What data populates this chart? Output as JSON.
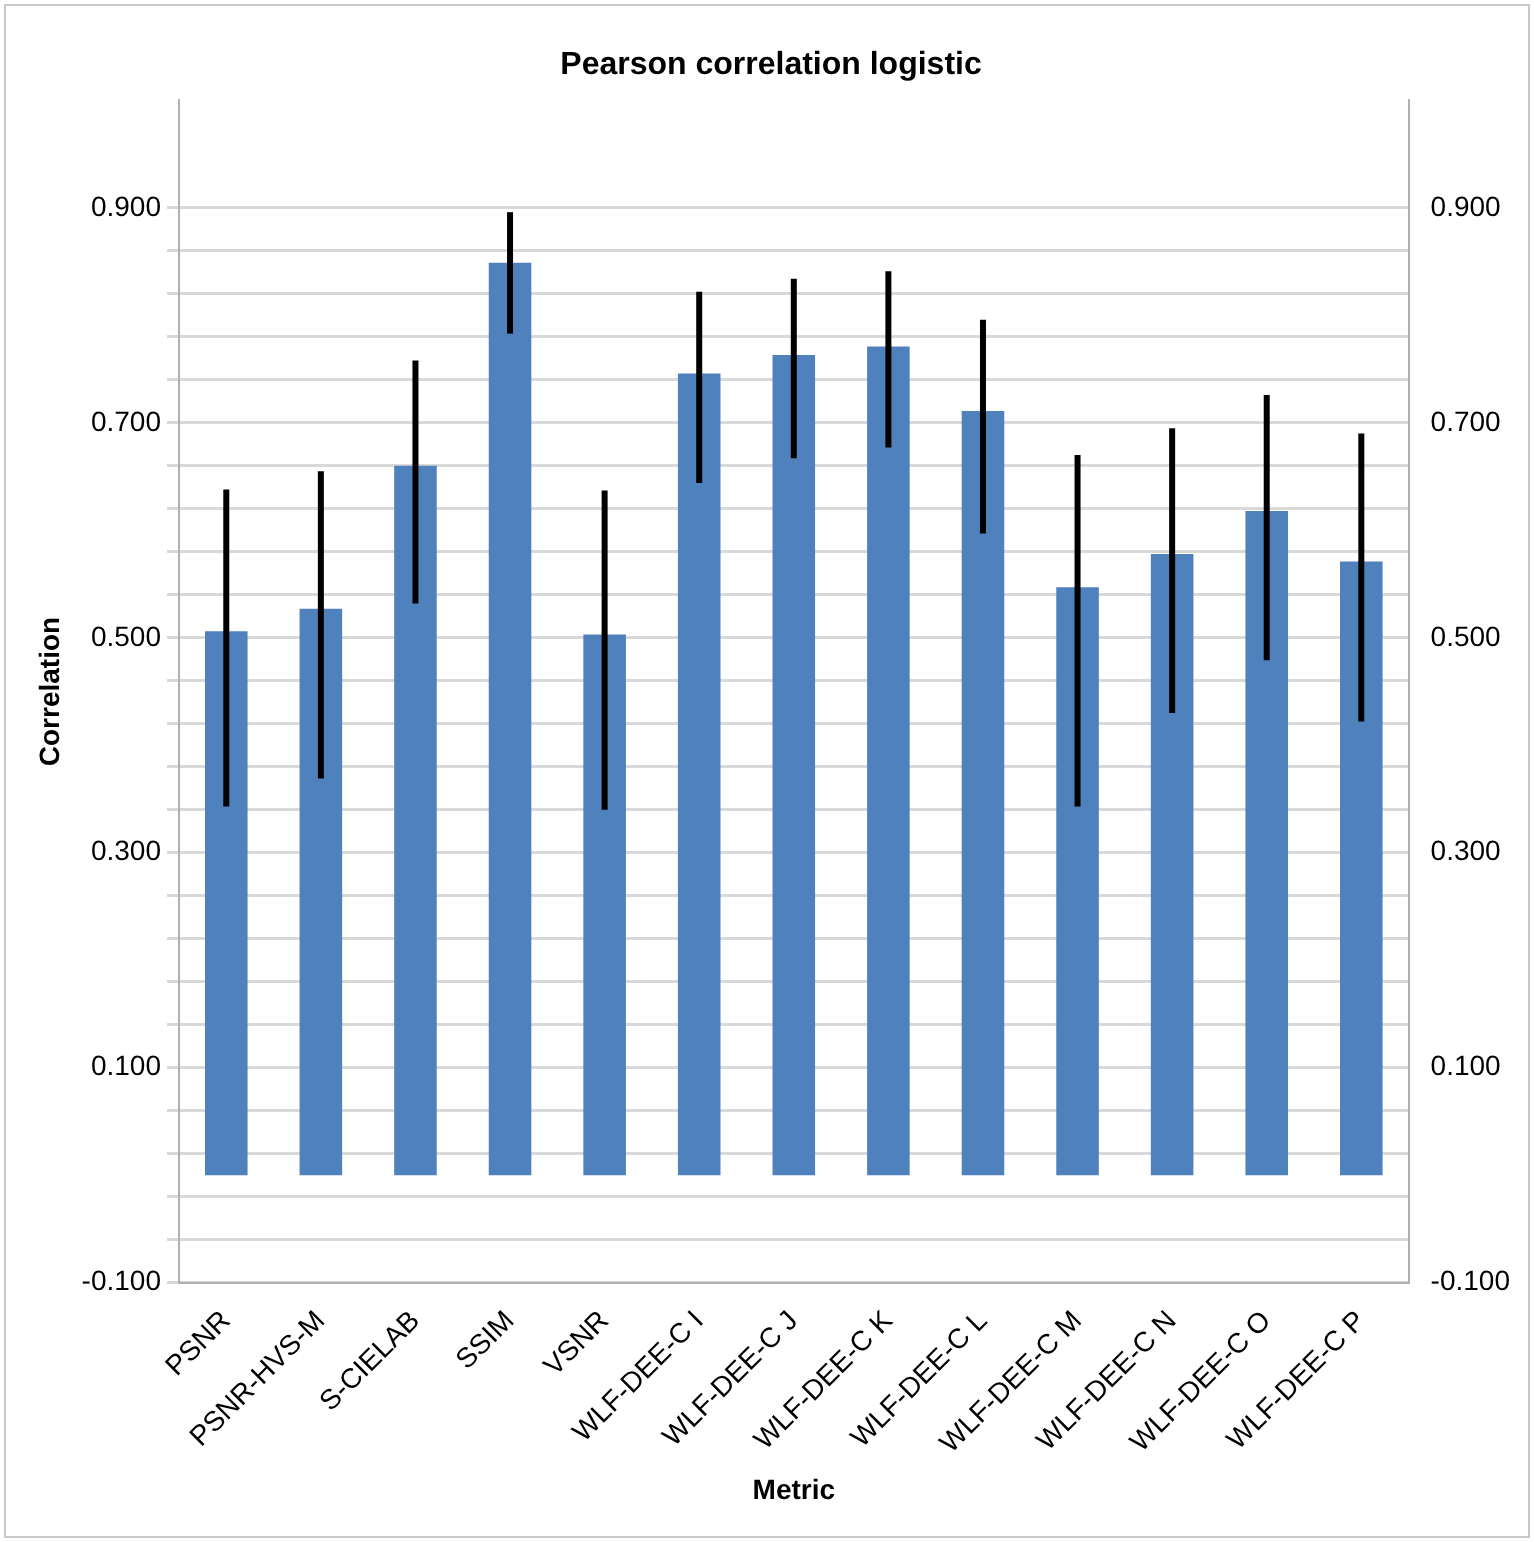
{
  "chart_data": {
    "type": "bar",
    "title": "Pearson correlation logistic",
    "xlabel": "Metric",
    "ylabel": "Correlation",
    "categories": [
      "PSNR",
      "PSNR-HVS-M",
      "S-CIELAB",
      "SSIM",
      "VSNR",
      "WLF-DEE-C I",
      "WLF-DEE-C J",
      "WLF-DEE-C K",
      "WLF-DEE-C L",
      "WLF-DEE-C M",
      "WLF-DEE-C N",
      "WLF-DEE-C O",
      "WLF-DEE-C P"
    ],
    "values": [
      0.506,
      0.527,
      0.66,
      0.849,
      0.503,
      0.746,
      0.763,
      0.771,
      0.711,
      0.547,
      0.578,
      0.618,
      0.571
    ],
    "errors": [
      [
        0.343,
        0.638
      ],
      [
        0.369,
        0.655
      ],
      [
        0.532,
        0.758
      ],
      [
        0.783,
        0.896
      ],
      [
        0.34,
        0.637
      ],
      [
        0.644,
        0.822
      ],
      [
        0.667,
        0.834
      ],
      [
        0.677,
        0.841
      ],
      [
        0.597,
        0.796
      ],
      [
        0.343,
        0.67
      ],
      [
        0.43,
        0.695
      ],
      [
        0.479,
        0.726
      ],
      [
        0.422,
        0.69
      ]
    ],
    "color": "#4f81bd",
    "ylim": [
      -0.1,
      1.0
    ],
    "yticks": [
      {
        "value": -0.1,
        "label": "-0.100"
      },
      {
        "value": -0.06,
        "label": null
      },
      {
        "value": -0.02,
        "label": null
      },
      {
        "value": 0.02,
        "label": null
      },
      {
        "value": 0.06,
        "label": null
      },
      {
        "value": 0.1,
        "label": "0.100"
      },
      {
        "value": 0.14,
        "label": null
      },
      {
        "value": 0.18,
        "label": null
      },
      {
        "value": 0.22,
        "label": null
      },
      {
        "value": 0.26,
        "label": null
      },
      {
        "value": 0.3,
        "label": "0.300"
      },
      {
        "value": 0.34,
        "label": null
      },
      {
        "value": 0.38,
        "label": null
      },
      {
        "value": 0.42,
        "label": null
      },
      {
        "value": 0.46,
        "label": null
      },
      {
        "value": 0.5,
        "label": "0.500"
      },
      {
        "value": 0.54,
        "label": null
      },
      {
        "value": 0.58,
        "label": null
      },
      {
        "value": 0.62,
        "label": null
      },
      {
        "value": 0.66,
        "label": null
      },
      {
        "value": 0.7,
        "label": "0.700"
      },
      {
        "value": 0.74,
        "label": null
      },
      {
        "value": 0.78,
        "label": null
      },
      {
        "value": 0.82,
        "label": null
      },
      {
        "value": 0.86,
        "label": null
      },
      {
        "value": 0.9,
        "label": "0.900"
      }
    ],
    "y2lim": [
      -0.1,
      1.0
    ],
    "y2ticks": [
      {
        "value": -0.1,
        "label": "-0.100"
      },
      {
        "value": 0.1,
        "label": "0.100"
      },
      {
        "value": 0.3,
        "label": "0.300"
      },
      {
        "value": 0.5,
        "label": "0.500"
      },
      {
        "value": 0.7,
        "label": "0.700"
      },
      {
        "value": 0.9,
        "label": "0.900"
      }
    ],
    "grid": "y",
    "legend": false
  }
}
